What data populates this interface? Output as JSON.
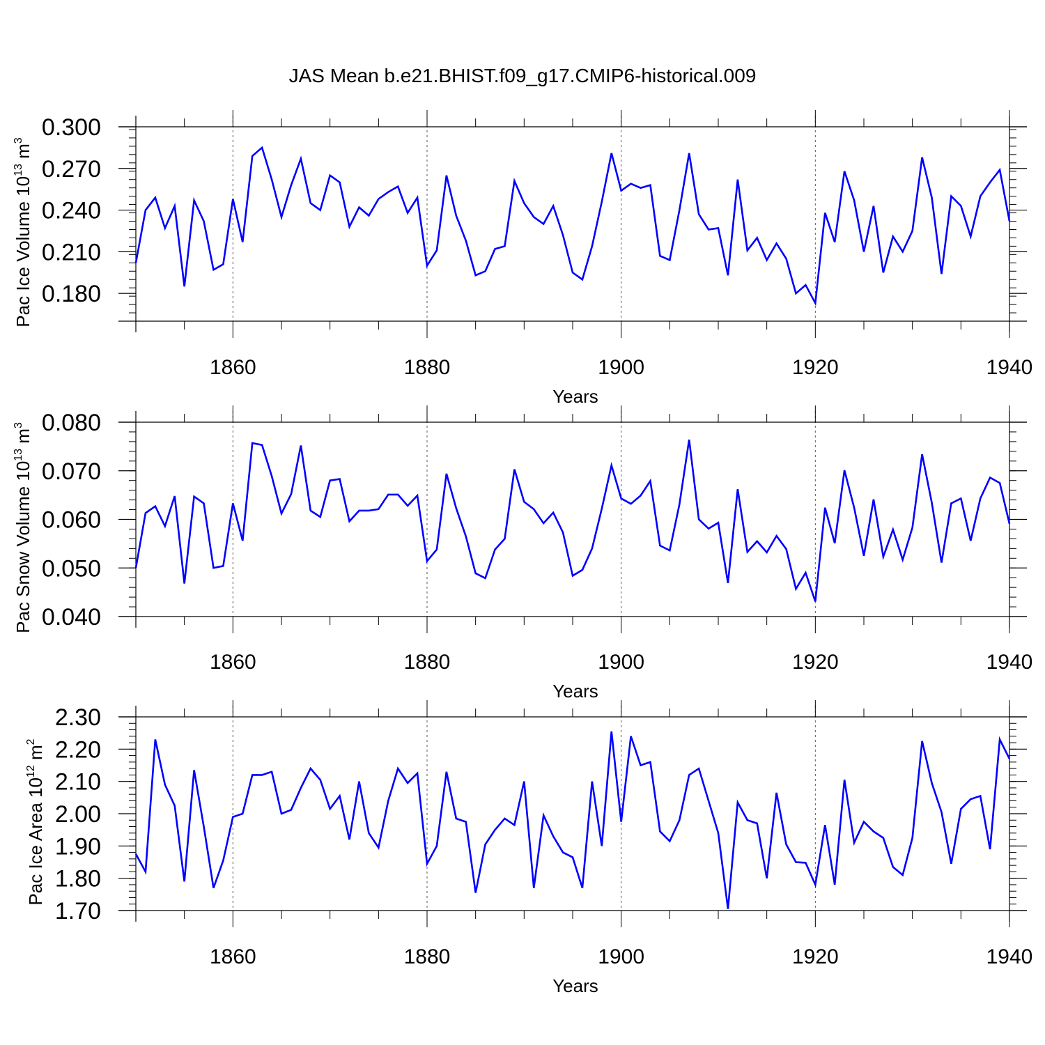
{
  "page_title": "JAS Mean b.e21.BHIST.f09_g17.CMIP6-historical.009",
  "chart_data": [
    {
      "type": "line",
      "id": "ice-volume",
      "ylabel_main": "Pac Ice Volume 10",
      "ylabel_exp": "13",
      "ylabel_unit": " m",
      "ylabel_unit_exp": "3",
      "xlabel": "Years",
      "xlim": [
        1850,
        1940
      ],
      "ylim": [
        0.16,
        0.3
      ],
      "yticks": [
        0.18,
        0.21,
        0.24,
        0.27,
        0.3
      ],
      "ytick_labels": [
        "0.180",
        "0.210",
        "0.240",
        "0.270",
        "0.300"
      ],
      "xticks": [
        1860,
        1880,
        1900,
        1920,
        1940
      ],
      "xtick_labels": [
        "1860",
        "1880",
        "1900",
        "1920",
        "1940"
      ],
      "line_color": "#0000ff",
      "series": [
        {
          "name": "Pac Ice Volume",
          "x_start": 1850,
          "values": [
            0.202,
            0.24,
            0.249,
            0.227,
            0.243,
            0.185,
            0.247,
            0.232,
            0.197,
            0.201,
            0.248,
            0.217,
            0.279,
            0.285,
            0.262,
            0.235,
            0.258,
            0.277,
            0.245,
            0.24,
            0.265,
            0.26,
            0.228,
            0.242,
            0.236,
            0.248,
            0.253,
            0.257,
            0.238,
            0.249,
            0.2,
            0.211,
            0.265,
            0.236,
            0.218,
            0.193,
            0.196,
            0.212,
            0.214,
            0.261,
            0.245,
            0.235,
            0.23,
            0.243,
            0.222,
            0.195,
            0.19,
            0.214,
            0.246,
            0.281,
            0.254,
            0.259,
            0.256,
            0.258,
            0.207,
            0.204,
            0.24,
            0.281,
            0.237,
            0.226,
            0.227,
            0.193,
            0.262,
            0.211,
            0.22,
            0.204,
            0.216,
            0.205,
            0.18,
            0.186,
            0.173,
            0.238,
            0.217,
            0.268,
            0.247,
            0.21,
            0.243,
            0.195,
            0.221,
            0.21,
            0.225,
            0.278,
            0.249,
            0.194,
            0.25,
            0.243,
            0.221,
            0.25,
            0.26,
            0.269,
            0.232
          ]
        }
      ]
    },
    {
      "type": "line",
      "id": "snow-volume",
      "ylabel_main": "Pac Snow Volume 10",
      "ylabel_exp": "13",
      "ylabel_unit": " m",
      "ylabel_unit_exp": "3",
      "xlabel": "Years",
      "xlim": [
        1850,
        1940
      ],
      "ylim": [
        0.04,
        0.08
      ],
      "yticks": [
        0.04,
        0.05,
        0.06,
        0.07,
        0.08
      ],
      "ytick_labels": [
        "0.040",
        "0.050",
        "0.060",
        "0.070",
        "0.080"
      ],
      "xticks": [
        1860,
        1880,
        1900,
        1920,
        1940
      ],
      "xtick_labels": [
        "1860",
        "1880",
        "1900",
        "1920",
        "1940"
      ],
      "line_color": "#0000ff",
      "series": [
        {
          "name": "Pac Snow Volume",
          "x_start": 1850,
          "values": [
            0.05,
            0.0613,
            0.0627,
            0.0586,
            0.0648,
            0.0468,
            0.0647,
            0.0633,
            0.05,
            0.0504,
            0.0633,
            0.0556,
            0.0757,
            0.0753,
            0.0689,
            0.0612,
            0.0652,
            0.0752,
            0.0618,
            0.0605,
            0.068,
            0.0683,
            0.0596,
            0.0618,
            0.0618,
            0.0621,
            0.0651,
            0.0651,
            0.0628,
            0.0649,
            0.0514,
            0.0538,
            0.0694,
            0.0623,
            0.0565,
            0.0489,
            0.0479,
            0.0538,
            0.056,
            0.0703,
            0.0636,
            0.0621,
            0.0592,
            0.0614,
            0.0573,
            0.0484,
            0.0496,
            0.054,
            0.0622,
            0.0711,
            0.0643,
            0.0632,
            0.0649,
            0.0679,
            0.0546,
            0.0536,
            0.0631,
            0.0764,
            0.06,
            0.0581,
            0.0593,
            0.0469,
            0.0662,
            0.0533,
            0.0555,
            0.0532,
            0.0566,
            0.0539,
            0.0457,
            0.049,
            0.0431,
            0.0624,
            0.0551,
            0.0701,
            0.0624,
            0.0525,
            0.0641,
            0.0523,
            0.0579,
            0.0517,
            0.0583,
            0.0734,
            0.0634,
            0.0511,
            0.0633,
            0.0643,
            0.0556,
            0.0643,
            0.0686,
            0.0675,
            0.0591
          ]
        }
      ]
    },
    {
      "type": "line",
      "id": "ice-area",
      "ylabel_main": "Pac Ice Area 10",
      "ylabel_exp": "12",
      "ylabel_unit": " m",
      "ylabel_unit_exp": "2",
      "xlabel": "Years",
      "xlim": [
        1850,
        1940
      ],
      "ylim": [
        1.7,
        2.3
      ],
      "yticks": [
        1.7,
        1.8,
        1.9,
        2.0,
        2.1,
        2.2,
        2.3
      ],
      "ytick_labels": [
        "1.70",
        "1.80",
        "1.90",
        "2.00",
        "2.10",
        "2.20",
        "2.30"
      ],
      "xticks": [
        1860,
        1880,
        1900,
        1920,
        1940
      ],
      "xtick_labels": [
        "1860",
        "1880",
        "1900",
        "1920",
        "1940"
      ],
      "line_color": "#0000ff",
      "series": [
        {
          "name": "Pac Ice Area",
          "x_start": 1850,
          "values": [
            1.875,
            1.82,
            2.23,
            2.09,
            2.025,
            1.79,
            2.135,
            1.96,
            1.77,
            1.855,
            1.99,
            2.0,
            2.12,
            2.12,
            2.13,
            2.0,
            2.012,
            2.08,
            2.14,
            2.105,
            2.015,
            2.055,
            1.92,
            2.1,
            1.94,
            1.895,
            2.04,
            2.14,
            2.095,
            2.125,
            1.845,
            1.9,
            2.13,
            1.985,
            1.975,
            1.755,
            1.905,
            1.95,
            1.985,
            1.965,
            2.1,
            1.77,
            1.995,
            1.93,
            1.88,
            1.865,
            1.77,
            2.1,
            1.9,
            2.255,
            1.975,
            2.24,
            2.15,
            2.16,
            1.945,
            1.915,
            1.98,
            2.12,
            2.14,
            2.04,
            1.94,
            1.705,
            2.035,
            1.98,
            1.97,
            1.8,
            2.065,
            1.905,
            1.85,
            1.848,
            1.78,
            1.965,
            1.78,
            2.105,
            1.91,
            1.975,
            1.945,
            1.925,
            1.835,
            1.81,
            1.925,
            2.225,
            2.095,
            2.005,
            1.845,
            2.015,
            2.045,
            2.055,
            1.89,
            2.23,
            2.17
          ]
        }
      ]
    }
  ]
}
